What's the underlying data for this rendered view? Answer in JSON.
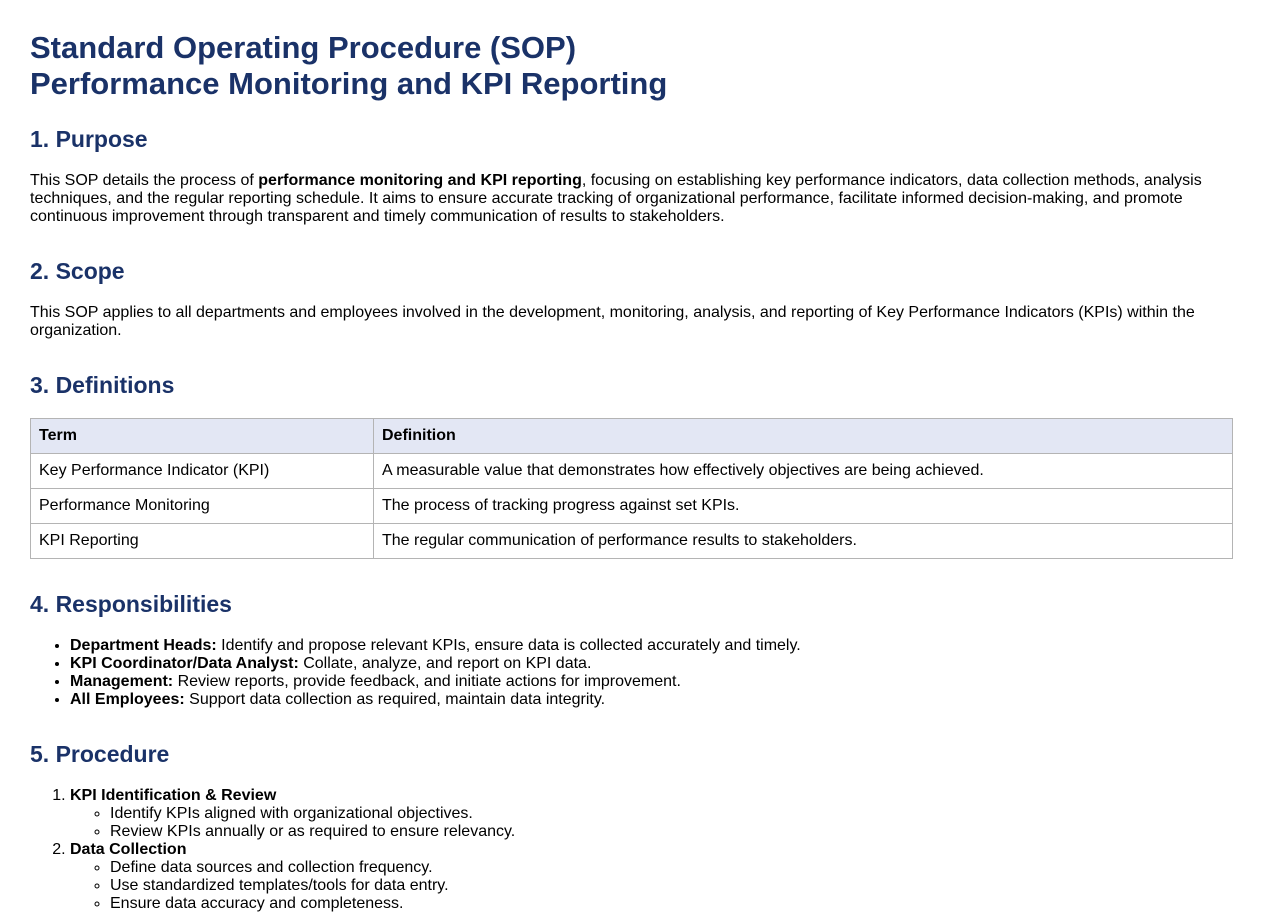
{
  "title": {
    "line1": "Standard Operating Procedure (SOP)",
    "line2": "Performance Monitoring and KPI Reporting"
  },
  "purpose": {
    "heading": "1. Purpose",
    "text_before": "This SOP details the process of ",
    "bold": "performance monitoring and KPI reporting",
    "text_after": ", focusing on establishing key performance indicators, data collection methods, analysis techniques, and the regular reporting schedule. It aims to ensure accurate tracking of organizational performance, facilitate informed decision-making, and promote continuous improvement through transparent and timely communication of results to stakeholders."
  },
  "scope": {
    "heading": "2. Scope",
    "text": "This SOP applies to all departments and employees involved in the development, monitoring, analysis, and reporting of Key Performance Indicators (KPIs) within the organization."
  },
  "definitions": {
    "heading": "3. Definitions",
    "columns": [
      "Term",
      "Definition"
    ],
    "rows": [
      [
        "Key Performance Indicator (KPI)",
        "A measurable value that demonstrates how effectively objectives are being achieved."
      ],
      [
        "Performance Monitoring",
        "The process of tracking progress against set KPIs."
      ],
      [
        "KPI Reporting",
        "The regular communication of performance results to stakeholders."
      ]
    ]
  },
  "responsibilities": {
    "heading": "4. Responsibilities",
    "items": [
      {
        "role": "Department Heads:",
        "text": " Identify and propose relevant KPIs, ensure data is collected accurately and timely."
      },
      {
        "role": "KPI Coordinator/Data Analyst:",
        "text": " Collate, analyze, and report on KPI data."
      },
      {
        "role": "Management:",
        "text": " Review reports, provide feedback, and initiate actions for improvement."
      },
      {
        "role": "All Employees:",
        "text": " Support data collection as required, maintain data integrity."
      }
    ]
  },
  "procedure": {
    "heading": "5. Procedure",
    "steps": [
      {
        "title": "KPI Identification & Review",
        "items": [
          "Identify KPIs aligned with organizational objectives.",
          "Review KPIs annually or as required to ensure relevancy."
        ]
      },
      {
        "title": "Data Collection",
        "items": [
          "Define data sources and collection frequency.",
          "Use standardized templates/tools for data entry.",
          "Ensure data accuracy and completeness."
        ]
      }
    ]
  }
}
